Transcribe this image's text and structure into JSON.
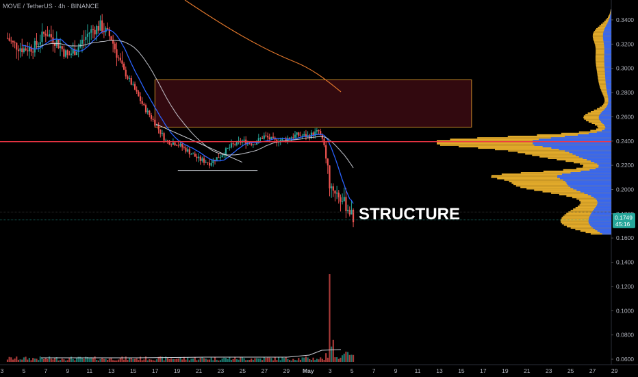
{
  "header": {
    "symbol_label": "MOVE / TetherUS · 4h · BINANCE"
  },
  "chart_data": {
    "type": "candlestick",
    "title": "MOVE / TetherUS · 4h · BINANCE",
    "annotation": "STRUCTURE",
    "price_axis": {
      "ticks": [
        "0.3400",
        "0.3200",
        "0.3000",
        "0.2800",
        "0.2600",
        "0.2400",
        "0.2200",
        "0.2000",
        "0.1800",
        "0.1600",
        "0.1400",
        "0.1200",
        "0.1000",
        "0.0800",
        "0.0600"
      ],
      "ylim": [
        0.055,
        0.35
      ]
    },
    "time_axis": {
      "ticks": [
        "3",
        "5",
        "7",
        "9",
        "11",
        "13",
        "15",
        "17",
        "19",
        "21",
        "23",
        "25",
        "27",
        "29",
        "May",
        "3",
        "5",
        "7",
        "9",
        "11",
        "13",
        "15",
        "17",
        "19",
        "21",
        "23",
        "25",
        "27",
        "29"
      ]
    },
    "last_price": {
      "price": "0.1749",
      "countdown": "45:16"
    },
    "horizontal_level": 0.2395,
    "supply_zone": {
      "top": 0.2905,
      "bottom": 0.2515,
      "start_day": 17,
      "end_day": 46
    },
    "candles_close_path": [
      [
        3.5,
        0.325
      ],
      [
        4,
        0.32
      ],
      [
        5,
        0.316
      ],
      [
        6,
        0.318
      ],
      [
        7,
        0.33
      ],
      [
        8,
        0.322
      ],
      [
        9,
        0.31
      ],
      [
        10,
        0.318
      ],
      [
        11,
        0.33
      ],
      [
        12,
        0.335
      ],
      [
        13,
        0.325
      ],
      [
        14,
        0.3
      ],
      [
        15,
        0.285
      ],
      [
        16,
        0.268
      ],
      [
        17,
        0.255
      ],
      [
        18,
        0.24
      ],
      [
        19,
        0.238
      ],
      [
        20,
        0.232
      ],
      [
        21,
        0.225
      ],
      [
        22,
        0.222
      ],
      [
        23,
        0.228
      ],
      [
        24,
        0.236
      ],
      [
        25,
        0.24
      ],
      [
        26,
        0.238
      ],
      [
        27,
        0.244
      ],
      [
        28,
        0.24
      ],
      [
        29,
        0.242
      ],
      [
        30,
        0.245
      ],
      [
        31,
        0.244
      ],
      [
        32,
        0.248
      ],
      [
        32.5,
        0.236
      ],
      [
        33,
        0.205
      ],
      [
        34,
        0.193
      ],
      [
        34.8,
        0.183
      ],
      [
        35.2,
        0.175
      ]
    ],
    "series": [
      {
        "name": "",
        "color": "#2962ff"
      },
      {
        "name": "",
        "color": "#d1d4dc"
      },
      {
        "name": "",
        "color": "#e0762b"
      }
    ],
    "colors": {
      "up": "#26a69a",
      "down": "#ef5350",
      "level": "#f23645",
      "zone": "#3b0a12",
      "profile_up": "#f5b82e",
      "profile_down": "#2962ff",
      "volume_ma": "#d1d4dc"
    }
  }
}
